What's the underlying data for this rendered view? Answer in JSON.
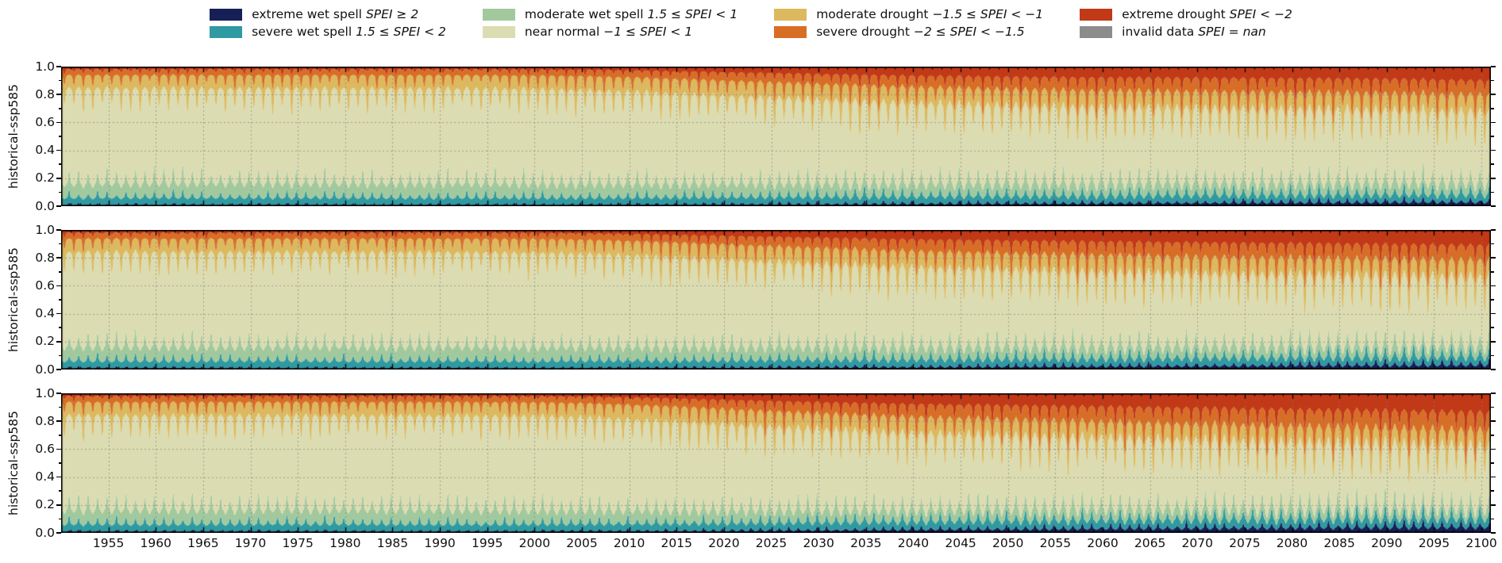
{
  "figure": {
    "background": "#ffffff"
  },
  "legend": {
    "items": [
      {
        "key": "extreme-wet-spell",
        "name": "extreme wet spell",
        "range": "SPEI ≥ 2",
        "color": "#161f56"
      },
      {
        "key": "severe-wet-spell",
        "name": "severe wet spell",
        "range": "1.5 ≤ SPEI < 2",
        "color": "#2f9aa1"
      },
      {
        "key": "moderate-wet-spell",
        "name": "moderate wet spell",
        "range": "1.5 ≤ SPEI < 1",
        "color": "#a2c99e"
      },
      {
        "key": "near-normal",
        "name": "near normal",
        "range": "−1 ≤ SPEI < 1",
        "color": "#dcdcb2"
      },
      {
        "key": "moderate-drought",
        "name": "moderate drought",
        "range": "−1.5 ≤ SPEI < −1",
        "color": "#dcb95f"
      },
      {
        "key": "severe-drought",
        "name": "severe drought",
        "range": "−2 ≤ SPEI < −1.5",
        "color": "#d86e26"
      },
      {
        "key": "extreme-drought",
        "name": "extreme drought",
        "range": "SPEI < −2",
        "color": "#c23917"
      },
      {
        "key": "invalid-data",
        "name": "invalid data",
        "range": "SPEI = nan",
        "color": "#8c8c8c"
      }
    ]
  },
  "x_axis": {
    "ticks": [
      1955,
      1960,
      1965,
      1970,
      1975,
      1980,
      1985,
      1990,
      1995,
      2000,
      2005,
      2010,
      2015,
      2020,
      2025,
      2030,
      2035,
      2040,
      2045,
      2050,
      2055,
      2060,
      2065,
      2070,
      2075,
      2080,
      2085,
      2090,
      2095,
      2100
    ]
  },
  "y_axis": {
    "ticks": [
      "1.0",
      "0.8",
      "0.6",
      "0.4",
      "0.2",
      "0.0"
    ]
  },
  "chart_data": [
    {
      "type": "area",
      "stacked": true,
      "normalized": true,
      "title": "",
      "xlabel": "",
      "ylabel": "historical-ssp585",
      "xlim": [
        1950,
        2101
      ],
      "ylim": [
        0,
        1
      ],
      "grid": true,
      "legend_position": "above-figure",
      "seasonality": "annual cycle superimposed: drought-category fractions spike within each year, wet-category fractions spike in the opposite season; spike amplitude grows toward 2100",
      "sample_years": [
        1950,
        1960,
        1970,
        1980,
        1990,
        2000,
        2005,
        2010,
        2015,
        2020,
        2025,
        2030,
        2035,
        2040,
        2045,
        2050,
        2060,
        2070,
        2080,
        2090,
        2100
      ],
      "series": [
        {
          "name": "extreme wet spell",
          "color": "#161f56",
          "values": [
            0.01,
            0.01,
            0.011,
            0.01,
            0.01,
            0.01,
            0.011,
            0.011,
            0.012,
            0.013,
            0.014,
            0.015,
            0.016,
            0.017,
            0.018,
            0.019,
            0.021,
            0.024,
            0.026,
            0.028,
            0.03
          ]
        },
        {
          "name": "severe wet spell",
          "color": "#2f9aa1",
          "values": [
            0.05,
            0.052,
            0.05,
            0.051,
            0.049,
            0.05,
            0.05,
            0.05,
            0.051,
            0.051,
            0.052,
            0.052,
            0.053,
            0.053,
            0.054,
            0.054,
            0.054,
            0.055,
            0.055,
            0.055,
            0.055
          ]
        },
        {
          "name": "moderate wet spell",
          "color": "#a2c99e",
          "values": [
            0.1,
            0.102,
            0.105,
            0.101,
            0.103,
            0.1,
            0.099,
            0.098,
            0.097,
            0.096,
            0.095,
            0.094,
            0.093,
            0.092,
            0.091,
            0.09,
            0.089,
            0.088,
            0.087,
            0.086,
            0.085
          ]
        },
        {
          "name": "near normal",
          "color": "#dcdcb2",
          "values": [
            0.675,
            0.671,
            0.669,
            0.673,
            0.673,
            0.67,
            0.664,
            0.652,
            0.638,
            0.622,
            0.607,
            0.592,
            0.578,
            0.566,
            0.556,
            0.547,
            0.534,
            0.524,
            0.517,
            0.509,
            0.5
          ]
        },
        {
          "name": "moderate drought",
          "color": "#dcb95f",
          "values": [
            0.1,
            0.1,
            0.1,
            0.1,
            0.1,
            0.102,
            0.104,
            0.107,
            0.11,
            0.113,
            0.115,
            0.117,
            0.119,
            0.12,
            0.121,
            0.122,
            0.123,
            0.124,
            0.124,
            0.125,
            0.125
          ]
        },
        {
          "name": "severe drought",
          "color": "#d86e26",
          "values": [
            0.045,
            0.045,
            0.045,
            0.045,
            0.045,
            0.046,
            0.048,
            0.052,
            0.057,
            0.062,
            0.068,
            0.073,
            0.078,
            0.082,
            0.086,
            0.09,
            0.096,
            0.1,
            0.102,
            0.104,
            0.105
          ]
        },
        {
          "name": "extreme drought",
          "color": "#c23917",
          "values": [
            0.02,
            0.02,
            0.02,
            0.02,
            0.02,
            0.022,
            0.024,
            0.03,
            0.035,
            0.043,
            0.049,
            0.057,
            0.063,
            0.07,
            0.074,
            0.078,
            0.083,
            0.085,
            0.089,
            0.093,
            0.105
          ]
        }
      ]
    },
    {
      "type": "area",
      "stacked": true,
      "normalized": true,
      "title": "",
      "xlabel": "",
      "ylabel": "historical-ssp585",
      "xlim": [
        1950,
        2101
      ],
      "ylim": [
        0,
        1
      ],
      "grid": true,
      "legend_position": "above-figure",
      "seasonality": "annual cycle superimposed: drought-category fractions spike within each year, wet-category fractions spike in the opposite season; spike amplitude grows toward 2100",
      "sample_years": [
        1950,
        1960,
        1970,
        1980,
        1990,
        2000,
        2005,
        2010,
        2015,
        2020,
        2025,
        2030,
        2035,
        2040,
        2045,
        2050,
        2060,
        2070,
        2080,
        2090,
        2100
      ],
      "series": [
        {
          "name": "extreme wet spell",
          "color": "#161f56",
          "values": [
            0.01,
            0.011,
            0.01,
            0.01,
            0.011,
            0.01,
            0.011,
            0.012,
            0.012,
            0.013,
            0.015,
            0.016,
            0.017,
            0.018,
            0.019,
            0.02,
            0.023,
            0.026,
            0.029,
            0.031,
            0.033
          ]
        },
        {
          "name": "severe wet spell",
          "color": "#2f9aa1",
          "values": [
            0.052,
            0.05,
            0.053,
            0.05,
            0.051,
            0.05,
            0.051,
            0.051,
            0.052,
            0.052,
            0.053,
            0.053,
            0.054,
            0.054,
            0.055,
            0.055,
            0.056,
            0.057,
            0.058,
            0.059,
            0.06
          ]
        },
        {
          "name": "moderate wet spell",
          "color": "#a2c99e",
          "values": [
            0.102,
            0.104,
            0.1,
            0.103,
            0.101,
            0.1,
            0.099,
            0.098,
            0.096,
            0.095,
            0.094,
            0.093,
            0.092,
            0.091,
            0.09,
            0.089,
            0.087,
            0.085,
            0.083,
            0.081,
            0.08
          ]
        },
        {
          "name": "near normal",
          "color": "#dcdcb2",
          "values": [
            0.669,
            0.668,
            0.67,
            0.67,
            0.67,
            0.669,
            0.661,
            0.648,
            0.634,
            0.617,
            0.6,
            0.585,
            0.571,
            0.559,
            0.549,
            0.54,
            0.524,
            0.511,
            0.499,
            0.489,
            0.479
          ]
        },
        {
          "name": "moderate drought",
          "color": "#dcb95f",
          "values": [
            0.1,
            0.1,
            0.1,
            0.1,
            0.1,
            0.103,
            0.105,
            0.108,
            0.112,
            0.115,
            0.117,
            0.119,
            0.12,
            0.121,
            0.122,
            0.122,
            0.123,
            0.123,
            0.123,
            0.123,
            0.123
          ]
        },
        {
          "name": "severe drought",
          "color": "#d86e26",
          "values": [
            0.046,
            0.046,
            0.046,
            0.046,
            0.046,
            0.046,
            0.048,
            0.052,
            0.057,
            0.063,
            0.069,
            0.075,
            0.08,
            0.085,
            0.089,
            0.093,
            0.099,
            0.104,
            0.107,
            0.109,
            0.11
          ]
        },
        {
          "name": "extreme drought",
          "color": "#c23917",
          "values": [
            0.021,
            0.021,
            0.021,
            0.021,
            0.021,
            0.022,
            0.025,
            0.031,
            0.037,
            0.045,
            0.052,
            0.059,
            0.066,
            0.072,
            0.076,
            0.081,
            0.088,
            0.094,
            0.101,
            0.108,
            0.115
          ]
        }
      ]
    },
    {
      "type": "area",
      "stacked": true,
      "normalized": true,
      "title": "",
      "xlabel": "",
      "ylabel": "historical-ssp585",
      "xlim": [
        1950,
        2101
      ],
      "ylim": [
        0,
        1
      ],
      "grid": true,
      "legend_position": "above-figure",
      "seasonality": "annual cycle superimposed: drought-category fractions spike within each year, wet-category fractions spike in the opposite season; spike amplitude grows toward 2100",
      "sample_years": [
        1950,
        1960,
        1970,
        1980,
        1990,
        2000,
        2005,
        2010,
        2015,
        2020,
        2025,
        2030,
        2035,
        2040,
        2045,
        2050,
        2060,
        2070,
        2080,
        2090,
        2100
      ],
      "series": [
        {
          "name": "extreme wet spell",
          "color": "#161f56",
          "values": [
            0.01,
            0.01,
            0.011,
            0.011,
            0.01,
            0.011,
            0.012,
            0.013,
            0.014,
            0.015,
            0.017,
            0.019,
            0.021,
            0.023,
            0.025,
            0.027,
            0.031,
            0.034,
            0.037,
            0.04,
            0.042
          ]
        },
        {
          "name": "severe wet spell",
          "color": "#2f9aa1",
          "values": [
            0.053,
            0.051,
            0.052,
            0.052,
            0.05,
            0.051,
            0.052,
            0.052,
            0.053,
            0.054,
            0.055,
            0.056,
            0.057,
            0.058,
            0.059,
            0.06,
            0.061,
            0.062,
            0.062,
            0.062,
            0.062
          ]
        },
        {
          "name": "moderate wet spell",
          "color": "#a2c99e",
          "values": [
            0.103,
            0.105,
            0.102,
            0.104,
            0.102,
            0.1,
            0.099,
            0.097,
            0.095,
            0.093,
            0.091,
            0.089,
            0.088,
            0.086,
            0.085,
            0.084,
            0.082,
            0.08,
            0.078,
            0.077,
            0.076
          ]
        },
        {
          "name": "near normal",
          "color": "#dcdcb2",
          "values": [
            0.666,
            0.666,
            0.667,
            0.665,
            0.67,
            0.666,
            0.658,
            0.643,
            0.625,
            0.605,
            0.586,
            0.568,
            0.552,
            0.538,
            0.526,
            0.515,
            0.495,
            0.477,
            0.46,
            0.444,
            0.43
          ]
        },
        {
          "name": "moderate drought",
          "color": "#dcb95f",
          "values": [
            0.101,
            0.101,
            0.101,
            0.101,
            0.101,
            0.103,
            0.106,
            0.11,
            0.113,
            0.116,
            0.118,
            0.119,
            0.12,
            0.12,
            0.12,
            0.12,
            0.12,
            0.119,
            0.118,
            0.117,
            0.116
          ]
        },
        {
          "name": "severe drought",
          "color": "#d86e26",
          "values": [
            0.046,
            0.046,
            0.046,
            0.046,
            0.046,
            0.047,
            0.049,
            0.054,
            0.06,
            0.067,
            0.074,
            0.081,
            0.087,
            0.093,
            0.098,
            0.103,
            0.111,
            0.118,
            0.124,
            0.129,
            0.133
          ]
        },
        {
          "name": "extreme drought",
          "color": "#c23917",
          "values": [
            0.021,
            0.021,
            0.021,
            0.021,
            0.021,
            0.022,
            0.026,
            0.032,
            0.04,
            0.05,
            0.059,
            0.068,
            0.075,
            0.082,
            0.087,
            0.091,
            0.1,
            0.11,
            0.121,
            0.131,
            0.141
          ]
        }
      ]
    }
  ]
}
